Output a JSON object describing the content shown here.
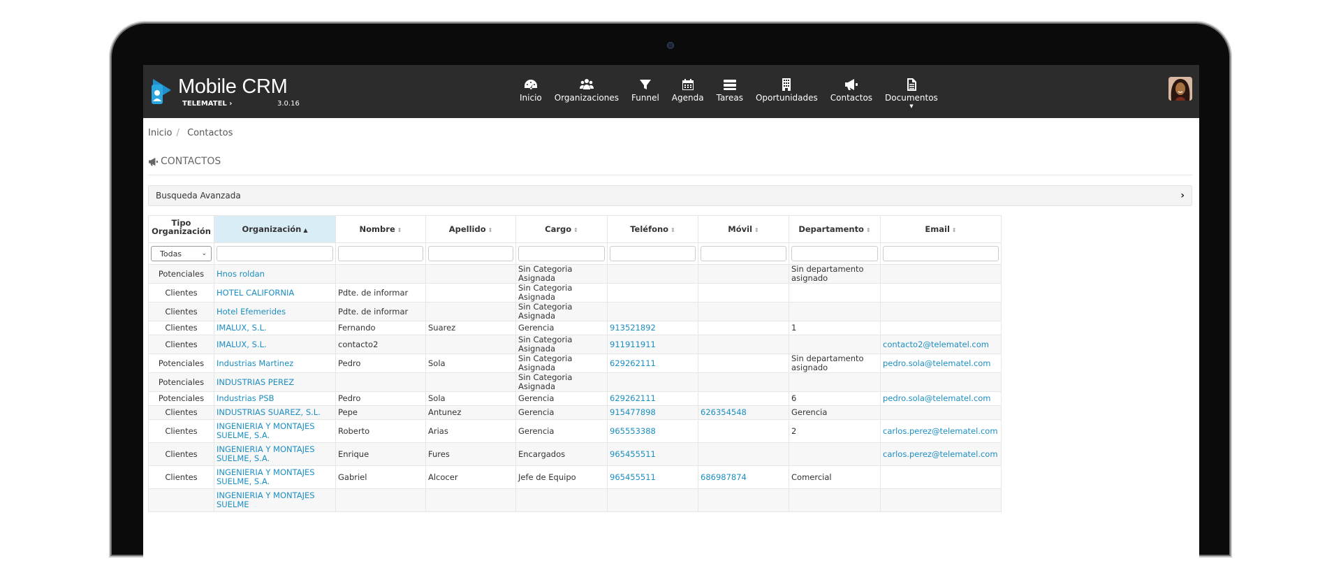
{
  "app": {
    "name": "Mobile CRM",
    "company": "TELEMATEL",
    "version": "3.0.16"
  },
  "nav": [
    {
      "label": "Inicio",
      "icon": "dashboard-icon"
    },
    {
      "label": "Organizaciones",
      "icon": "users-icon"
    },
    {
      "label": "Funnel",
      "icon": "funnel-icon"
    },
    {
      "label": "Agenda",
      "icon": "calendar-icon"
    },
    {
      "label": "Tareas",
      "icon": "tasks-icon"
    },
    {
      "label": "Oportunidades",
      "icon": "building-icon"
    },
    {
      "label": "Contactos",
      "icon": "megaphone-icon"
    },
    {
      "label": "Documentos",
      "icon": "document-icon"
    }
  ],
  "breadcrumb": {
    "home": "Inicio",
    "sep": "/",
    "current": "Contactos"
  },
  "page_title": "CONTACTOS",
  "advanced_search": "Busqueda Avanzada",
  "table": {
    "headers": [
      "Tipo Organización",
      "Organización",
      "Nombre",
      "Apellido",
      "Cargo",
      "Teléfono",
      "Móvil",
      "Departamento",
      "Email"
    ],
    "tipo_filter": "Todas",
    "rows": [
      [
        "Potenciales",
        "Hnos roldan",
        "",
        "",
        "Sin Categoria Asignada",
        "",
        "",
        "Sin departamento asignado",
        ""
      ],
      [
        "Clientes",
        "HOTEL CALIFORNIA",
        "Pdte. de informar",
        "",
        "Sin Categoria Asignada",
        "",
        "",
        "",
        ""
      ],
      [
        "Clientes",
        "Hotel Efemerides",
        "Pdte. de informar",
        "",
        "Sin Categoria Asignada",
        "",
        "",
        "",
        ""
      ],
      [
        "Clientes",
        "IMALUX, S.L.",
        "Fernando",
        "Suarez",
        "Gerencia",
        "913521892",
        "",
        "1",
        ""
      ],
      [
        "Clientes",
        "IMALUX, S.L.",
        "contacto2",
        "",
        "Sin Categoria Asignada",
        "911911911",
        "",
        "",
        "contacto2@telematel.com"
      ],
      [
        "Potenciales",
        "Industrias Martinez",
        "Pedro",
        "Sola",
        "Sin Categoria Asignada",
        "629262111",
        "",
        "Sin departamento asignado",
        "pedro.sola@telematel.com"
      ],
      [
        "Potenciales",
        "INDUSTRIAS PEREZ",
        "",
        "",
        "Sin Categoria Asignada",
        "",
        "",
        "",
        ""
      ],
      [
        "Potenciales",
        "Industrias PSB",
        "Pedro",
        "Sola",
        "Gerencia",
        "629262111",
        "",
        "6",
        "pedro.sola@telematel.com"
      ],
      [
        "Clientes",
        "INDUSTRIAS SUAREZ, S.L.",
        "Pepe",
        "Antunez",
        "Gerencia",
        "915477898",
        "626354548",
        "Gerencia",
        ""
      ],
      [
        "Clientes",
        "INGENIERIA Y MONTAJES SUELME, S.A.",
        "Roberto",
        "Arias",
        "Gerencia",
        "965553388",
        "",
        "2",
        "carlos.perez@telematel.com"
      ],
      [
        "Clientes",
        "INGENIERIA Y MONTAJES SUELME, S.A.",
        "Enrique",
        "Fures",
        "Encargados",
        "965455511",
        "",
        "",
        "carlos.perez@telematel.com"
      ],
      [
        "Clientes",
        "INGENIERIA Y MONTAJES SUELME, S.A.",
        "Gabriel",
        "Alcocer",
        "Jefe de Equipo",
        "965455511",
        "686987874",
        "Comercial",
        ""
      ],
      [
        "",
        "INGENIERIA Y MONTAJES SUELME",
        "",
        "",
        "",
        "",
        "",
        "",
        ""
      ]
    ]
  }
}
